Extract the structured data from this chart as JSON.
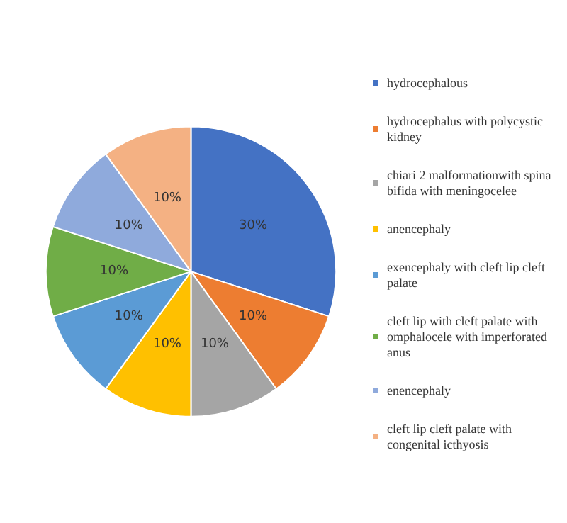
{
  "chart_data": {
    "type": "pie",
    "categories": [
      "hydrocephalous",
      "hydrocephalus with polycystic kidney",
      "chiari 2 malformationwith spina bifida with meningocelee",
      "anencephaly",
      "exencephaly with cleft lip cleft palate",
      "cleft lip with cleft palate with omphalocele with imperforated anus",
      "enencephaly",
      "cleft lip cleft palate with congenital icthyosis"
    ],
    "values": [
      30,
      10,
      10,
      10,
      10,
      10,
      10,
      10
    ],
    "colors": [
      "#4472c4",
      "#ed7d31",
      "#a5a5a5",
      "#ffc000",
      "#5b9bd5",
      "#70ad47",
      "#8faadc",
      "#f4b183"
    ],
    "value_labels": [
      "30%",
      "10%",
      "10%",
      "10%",
      "10%",
      "10%",
      "10%",
      "10%"
    ],
    "legend": "right"
  }
}
